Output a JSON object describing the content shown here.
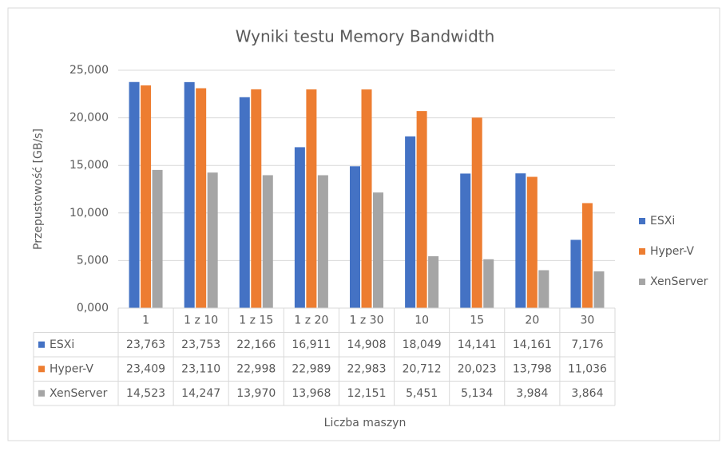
{
  "chart_data": {
    "type": "bar",
    "title": "Wyniki testu Memory Bandwidth",
    "x_label": "Liczba maszyn",
    "y_label": "Przepustowość [GB/s]",
    "categories": [
      "1",
      "1 z 10",
      "1 z 15",
      "1 z 20",
      "1 z 30",
      "10",
      "15",
      "20",
      "30"
    ],
    "series": [
      {
        "name": "ESXi",
        "color": "#4472c4",
        "values": [
          23.763,
          23.753,
          22.166,
          16.911,
          14.908,
          18.049,
          14.141,
          14.161,
          7.176
        ],
        "value_labels": [
          "23,763",
          "23,753",
          "22,166",
          "16,911",
          "14,908",
          "18,049",
          "14,141",
          "14,161",
          "7,176"
        ]
      },
      {
        "name": "Hyper-V",
        "color": "#ed7d31",
        "values": [
          23.409,
          23.11,
          22.998,
          22.989,
          22.983,
          20.712,
          20.023,
          13.798,
          11.036
        ],
        "value_labels": [
          "23,409",
          "23,110",
          "22,998",
          "22,989",
          "22,983",
          "20,712",
          "20,023",
          "13,798",
          "11,036"
        ]
      },
      {
        "name": "XenServer",
        "color": "#a5a5a5",
        "values": [
          14.523,
          14.247,
          13.97,
          13.968,
          12.151,
          5.451,
          5.134,
          3.984,
          3.864
        ],
        "value_labels": [
          "14,523",
          "14,247",
          "13,970",
          "13,968",
          "12,151",
          "5,451",
          "5,134",
          "3,984",
          "3,864"
        ]
      }
    ],
    "ylim": [
      0,
      25
    ],
    "yticks": [
      {
        "value": 0,
        "label": "0,000"
      },
      {
        "value": 5,
        "label": "5,000"
      },
      {
        "value": 10,
        "label": "10,000"
      },
      {
        "value": 15,
        "label": "15,000"
      },
      {
        "value": 20,
        "label": "20,000"
      },
      {
        "value": 25,
        "label": "25,000"
      }
    ],
    "grid": true,
    "legend": "right",
    "data_table": true
  }
}
